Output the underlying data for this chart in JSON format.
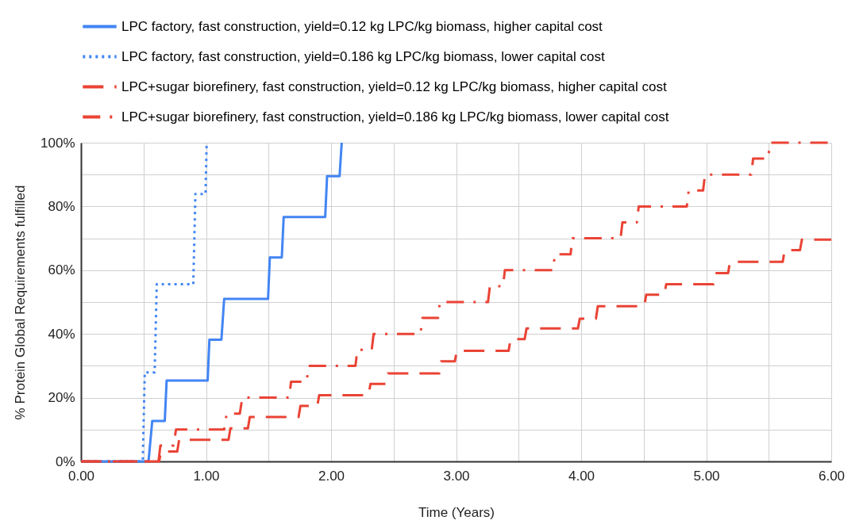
{
  "chart_data": {
    "type": "line",
    "xlabel": "Time (Years)",
    "ylabel": "% Protein Global Requirements fulfilled",
    "xlim": [
      0,
      6
    ],
    "ylim": [
      0,
      100
    ],
    "xticks": [
      {
        "value": 0,
        "label": "0.00"
      },
      {
        "value": 0.5,
        "label": null
      },
      {
        "value": 1,
        "label": "1.00"
      },
      {
        "value": 1.5,
        "label": null
      },
      {
        "value": 2,
        "label": "2.00"
      },
      {
        "value": 2.5,
        "label": null
      },
      {
        "value": 3,
        "label": "3.00"
      },
      {
        "value": 3.5,
        "label": null
      },
      {
        "value": 4,
        "label": "4.00"
      },
      {
        "value": 4.5,
        "label": null
      },
      {
        "value": 5,
        "label": "5.00"
      },
      {
        "value": 5.5,
        "label": null
      },
      {
        "value": 6,
        "label": "6.00"
      }
    ],
    "yticks": [
      {
        "value": 0,
        "label": "0%"
      },
      {
        "value": 10,
        "label": null
      },
      {
        "value": 20,
        "label": "20%"
      },
      {
        "value": 30,
        "label": null
      },
      {
        "value": 40,
        "label": "40%"
      },
      {
        "value": 50,
        "label": null
      },
      {
        "value": 60,
        "label": "60%"
      },
      {
        "value": 70,
        "label": null
      },
      {
        "value": 80,
        "label": "80%"
      },
      {
        "value": 90,
        "label": null
      },
      {
        "value": 100,
        "label": "100%"
      }
    ],
    "grid": true,
    "legend": "top",
    "marker": "none",
    "series": [
      {
        "name": "LPC factory, fast construction, yield=0.12 kg LPC/kg biomass, higher capital cost",
        "color": "#4285f4",
        "line_style": "solid",
        "x": [
          0,
          0.54,
          0.57,
          0.67,
          0.685,
          1.013,
          1.027,
          1.123,
          1.145,
          1.496,
          1.51,
          1.606,
          1.621,
          1.953,
          1.968,
          2.068,
          2.085
        ],
        "values": [
          0,
          0,
          12.7,
          12.7,
          25.4,
          25.4,
          38.2,
          38.2,
          51,
          51,
          64,
          64,
          76.7,
          76.7,
          89.5,
          89.5,
          100
        ]
      },
      {
        "name": "LPC factory, fast construction, yield=0.186 kg LPC/kg biomass, lower capital cost",
        "color": "#4285f4",
        "line_style": "dotted",
        "x": [
          0,
          0.494,
          0.51,
          0.589,
          0.606,
          0.898,
          0.915,
          0.996,
          1.005
        ],
        "values": [
          0,
          0,
          27.9,
          27.9,
          55.6,
          55.6,
          83.9,
          83.9,
          100
        ]
      },
      {
        "name": "LPC+sugar biorefinery, fast construction, yield=0.12 kg LPC/kg biomass, higher capital cost",
        "color": "#ea4335",
        "line_style": "dashed",
        "x": [
          0,
          0.625,
          0.64,
          0.77,
          0.785,
          1.18,
          1.195,
          1.335,
          1.35,
          1.74,
          1.755,
          1.89,
          1.905,
          2.3,
          2.315,
          2.44,
          2.455,
          2.865,
          2.88,
          2.99,
          3.005,
          3.42,
          3.435,
          3.548,
          3.563,
          3.974,
          3.989,
          4.118,
          4.133,
          4.505,
          4.52,
          4.665,
          4.68,
          5.059,
          5.074,
          5.175,
          5.19,
          5.612,
          5.627,
          5.75,
          5.765,
          6
        ],
        "values": [
          0,
          0,
          3.1,
          3.1,
          6.8,
          6.8,
          10.4,
          10.4,
          13.9,
          13.9,
          17.4,
          17.4,
          20.8,
          20.8,
          24.3,
          24.3,
          27.6,
          27.6,
          31.4,
          31.4,
          34.7,
          34.7,
          38.4,
          38.4,
          41.7,
          41.7,
          44.8,
          44.8,
          48.7,
          48.7,
          52.3,
          52.3,
          55.6,
          55.6,
          59.1,
          59.1,
          62.6,
          62.6,
          66.3,
          66.3,
          69.6,
          69.6
        ]
      },
      {
        "name": "LPC+sugar biorefinery, fast construction, yield=0.186 kg LPC/kg biomass, lower capital cost",
        "color": "#ea4335",
        "line_style": "dashdot",
        "x": [
          0,
          0.62,
          0.635,
          0.74,
          0.76,
          1.145,
          1.165,
          1.27,
          1.29,
          1.665,
          1.68,
          1.805,
          1.82,
          2.195,
          2.21,
          2.325,
          2.34,
          2.715,
          2.73,
          2.855,
          2.87,
          3.255,
          3.27,
          3.375,
          3.39,
          3.775,
          3.79,
          3.915,
          3.93,
          4.315,
          4.33,
          4.445,
          4.46,
          4.845,
          4.86,
          4.975,
          4.99,
          5.36,
          5.375,
          5.495,
          5.51,
          6
        ],
        "values": [
          0,
          0,
          5,
          5,
          10,
          10,
          15,
          15,
          20,
          20,
          25,
          25,
          30,
          30,
          35,
          35,
          40,
          40,
          45,
          45,
          50,
          50,
          55,
          55,
          60,
          60,
          65,
          65,
          70,
          70,
          75,
          75,
          80,
          80,
          85,
          85,
          90,
          90,
          95,
          95,
          100,
          100
        ]
      }
    ]
  }
}
